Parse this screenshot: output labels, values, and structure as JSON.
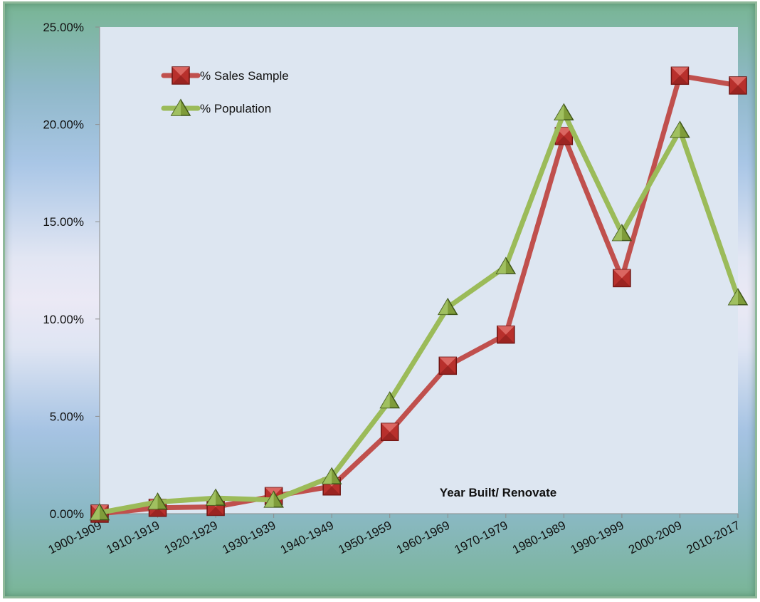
{
  "chart_data": {
    "type": "line",
    "title": "",
    "xlabel": "Year Built/ Renovate",
    "ylabel": "",
    "ylim": [
      0,
      25
    ],
    "y_ticks": [
      "0.00%",
      "5.00%",
      "10.00%",
      "15.00%",
      "20.00%",
      "25.00%"
    ],
    "y_tick_values": [
      0,
      5,
      10,
      15,
      20,
      25
    ],
    "categories": [
      "1900-1909",
      "1910-1919",
      "1920-1929",
      "1930-1939",
      "1940-1949",
      "1950-1959",
      "1960-1969",
      "1970-1979",
      "1980-1989",
      "1990-1999",
      "2000-2009",
      "2010-2017"
    ],
    "series": [
      {
        "name": "% Sales Sample",
        "values": [
          0.0,
          0.3,
          0.35,
          0.9,
          1.4,
          4.2,
          7.6,
          9.2,
          19.4,
          12.1,
          22.5,
          22.0
        ],
        "color": "#c0504d",
        "marker": "square"
      },
      {
        "name": "% Population",
        "values": [
          0.05,
          0.6,
          0.8,
          0.7,
          1.9,
          5.8,
          10.6,
          12.7,
          20.6,
          14.4,
          19.7,
          11.1
        ],
        "color": "#9bbb59",
        "marker": "triangle"
      }
    ],
    "grid": false,
    "legend_position": "top-left"
  }
}
